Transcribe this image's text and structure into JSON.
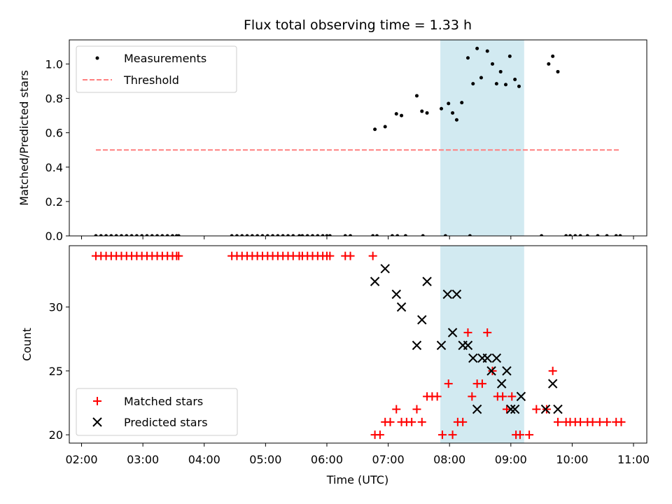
{
  "chart_data": [
    {
      "type": "scatter",
      "title": "Flux total observing time = 1.33 h",
      "ylabel": "Matched/Predicted stars",
      "xlabel": "",
      "ylim": [
        0,
        1.14
      ],
      "yticks": [
        0.0,
        0.2,
        0.4,
        0.6,
        0.8,
        1.0
      ],
      "ytick_labels": [
        "0.0",
        "0.2",
        "0.4",
        "0.6",
        "0.8",
        "1.0"
      ],
      "highlight_span": [
        "07:51",
        "09:13"
      ],
      "highlight_color": "#add8e6",
      "legend": {
        "position": "upper-left",
        "items": [
          "Measurements",
          "Threshold"
        ]
      },
      "series": [
        {
          "name": "Measurements",
          "marker": "dot",
          "color": "#000000",
          "points": [
            [
              "02:14",
              0
            ],
            [
              "02:19",
              0
            ],
            [
              "02:24",
              0
            ],
            [
              "02:29",
              0
            ],
            [
              "02:34",
              0
            ],
            [
              "02:39",
              0
            ],
            [
              "02:44",
              0
            ],
            [
              "02:49",
              0
            ],
            [
              "02:54",
              0
            ],
            [
              "02:59",
              0
            ],
            [
              "03:04",
              0
            ],
            [
              "03:09",
              0
            ],
            [
              "03:14",
              0
            ],
            [
              "03:19",
              0
            ],
            [
              "03:24",
              0
            ],
            [
              "03:29",
              0
            ],
            [
              "03:33",
              0
            ],
            [
              "03:35",
              0
            ],
            [
              "04:27",
              0
            ],
            [
              "04:32",
              0
            ],
            [
              "04:37",
              0
            ],
            [
              "04:42",
              0
            ],
            [
              "04:47",
              0
            ],
            [
              "04:52",
              0
            ],
            [
              "04:57",
              0
            ],
            [
              "05:02",
              0
            ],
            [
              "05:07",
              0
            ],
            [
              "05:12",
              0
            ],
            [
              "05:17",
              0
            ],
            [
              "05:22",
              0
            ],
            [
              "05:27",
              0
            ],
            [
              "05:33",
              0
            ],
            [
              "05:36",
              0
            ],
            [
              "05:41",
              0
            ],
            [
              "05:46",
              0
            ],
            [
              "05:51",
              0
            ],
            [
              "05:56",
              0
            ],
            [
              "06:00",
              0
            ],
            [
              "06:03",
              0
            ],
            [
              "06:18",
              0
            ],
            [
              "06:23",
              0
            ],
            [
              "06:45",
              0
            ],
            [
              "06:49",
              0
            ],
            [
              "07:04",
              0
            ],
            [
              "07:09",
              0
            ],
            [
              "07:17",
              0
            ],
            [
              "07:34",
              0
            ],
            [
              "07:56",
              0
            ],
            [
              "08:20",
              0
            ],
            [
              "09:30",
              0
            ],
            [
              "09:54",
              0
            ],
            [
              "09:58",
              0
            ],
            [
              "10:03",
              0
            ],
            [
              "10:08",
              0
            ],
            [
              "10:15",
              0
            ],
            [
              "10:25",
              0
            ],
            [
              "10:34",
              0
            ],
            [
              "10:43",
              0
            ],
            [
              "10:47",
              0
            ],
            [
              "06:47",
              0.62
            ],
            [
              "06:57",
              0.635
            ],
            [
              "07:08",
              0.71
            ],
            [
              "07:13",
              0.7
            ],
            [
              "07:28",
              0.815
            ],
            [
              "07:33",
              0.725
            ],
            [
              "07:38",
              0.715
            ],
            [
              "07:52",
              0.74
            ],
            [
              "07:59",
              0.77
            ],
            [
              "08:03",
              0.715
            ],
            [
              "08:07",
              0.675
            ],
            [
              "08:12",
              0.775
            ],
            [
              "08:18",
              1.035
            ],
            [
              "08:23",
              0.885
            ],
            [
              "08:27",
              1.09
            ],
            [
              "08:31",
              0.92
            ],
            [
              "08:37",
              1.075
            ],
            [
              "08:42",
              1.0
            ],
            [
              "08:46",
              0.885
            ],
            [
              "08:50",
              0.955
            ],
            [
              "08:55",
              0.88
            ],
            [
              "08:59",
              1.045
            ],
            [
              "09:04",
              0.91
            ],
            [
              "09:08",
              0.87
            ],
            [
              "09:37",
              1.0
            ],
            [
              "09:41",
              1.045
            ],
            [
              "09:46",
              0.955
            ]
          ]
        },
        {
          "name": "Threshold",
          "style": "dashed",
          "color": "#ff8080",
          "x": [
            "02:14",
            "10:47"
          ],
          "y": [
            0.5,
            0.5
          ]
        }
      ]
    },
    {
      "type": "scatter",
      "title": "",
      "xlabel": "Time (UTC)",
      "ylabel": "Count",
      "xlim": [
        "01:48",
        "11:13"
      ],
      "xticks": [
        "02:00",
        "03:00",
        "04:00",
        "05:00",
        "06:00",
        "07:00",
        "08:00",
        "09:00",
        "10:00",
        "11:00"
      ],
      "ylim": [
        19.35,
        34.8
      ],
      "yticks": [
        20,
        25,
        30
      ],
      "ytick_labels": [
        "20",
        "25",
        "30"
      ],
      "highlight_span": [
        "07:51",
        "09:13"
      ],
      "highlight_color": "#add8e6",
      "legend": {
        "position": "lower-left",
        "items": [
          "Matched stars",
          "Predicted stars"
        ]
      },
      "series": [
        {
          "name": "Matched stars",
          "marker": "plus",
          "color": "#ff0000",
          "points": [
            [
              "02:14",
              34
            ],
            [
              "02:19",
              34
            ],
            [
              "02:24",
              34
            ],
            [
              "02:29",
              34
            ],
            [
              "02:34",
              34
            ],
            [
              "02:39",
              34
            ],
            [
              "02:44",
              34
            ],
            [
              "02:49",
              34
            ],
            [
              "02:54",
              34
            ],
            [
              "02:59",
              34
            ],
            [
              "03:04",
              34
            ],
            [
              "03:09",
              34
            ],
            [
              "03:14",
              34
            ],
            [
              "03:19",
              34
            ],
            [
              "03:24",
              34
            ],
            [
              "03:29",
              34
            ],
            [
              "03:33",
              34
            ],
            [
              "03:35",
              34
            ],
            [
              "04:27",
              34
            ],
            [
              "04:32",
              34
            ],
            [
              "04:37",
              34
            ],
            [
              "04:42",
              34
            ],
            [
              "04:47",
              34
            ],
            [
              "04:52",
              34
            ],
            [
              "04:57",
              34
            ],
            [
              "05:02",
              34
            ],
            [
              "05:07",
              34
            ],
            [
              "05:12",
              34
            ],
            [
              "05:17",
              34
            ],
            [
              "05:22",
              34
            ],
            [
              "05:27",
              34
            ],
            [
              "05:33",
              34
            ],
            [
              "05:36",
              34
            ],
            [
              "05:41",
              34
            ],
            [
              "05:46",
              34
            ],
            [
              "05:51",
              34
            ],
            [
              "05:56",
              34
            ],
            [
              "06:00",
              34
            ],
            [
              "06:03",
              34
            ],
            [
              "06:18",
              34
            ],
            [
              "06:23",
              34
            ],
            [
              "06:45",
              34
            ],
            [
              "06:47",
              20
            ],
            [
              "06:52",
              20
            ],
            [
              "06:57",
              21
            ],
            [
              "07:02",
              21
            ],
            [
              "07:08",
              22
            ],
            [
              "07:13",
              21
            ],
            [
              "07:18",
              21
            ],
            [
              "07:23",
              21
            ],
            [
              "07:28",
              22
            ],
            [
              "07:33",
              21
            ],
            [
              "07:38",
              23
            ],
            [
              "07:43",
              23
            ],
            [
              "07:48",
              23
            ],
            [
              "07:53",
              20
            ],
            [
              "07:59",
              24
            ],
            [
              "08:03",
              20
            ],
            [
              "08:08",
              21
            ],
            [
              "08:13",
              21
            ],
            [
              "08:18",
              28
            ],
            [
              "08:22",
              23
            ],
            [
              "08:27",
              24
            ],
            [
              "08:32",
              24
            ],
            [
              "08:37",
              28
            ],
            [
              "08:42",
              25
            ],
            [
              "08:47",
              23
            ],
            [
              "08:52",
              23
            ],
            [
              "08:56",
              22
            ],
            [
              "09:01",
              23
            ],
            [
              "09:05",
              20
            ],
            [
              "09:09",
              20
            ],
            [
              "09:18",
              20
            ],
            [
              "09:25",
              22
            ],
            [
              "09:35",
              22
            ],
            [
              "09:41",
              25
            ],
            [
              "09:46",
              21
            ],
            [
              "09:54",
              21
            ],
            [
              "09:58",
              21
            ],
            [
              "10:03",
              21
            ],
            [
              "10:08",
              21
            ],
            [
              "10:15",
              21
            ],
            [
              "10:20",
              21
            ],
            [
              "10:27",
              21
            ],
            [
              "10:34",
              21
            ],
            [
              "10:43",
              21
            ],
            [
              "10:48",
              21
            ]
          ]
        },
        {
          "name": "Predicted stars",
          "marker": "x",
          "color": "#000000",
          "points": [
            [
              "06:47",
              32
            ],
            [
              "06:57",
              33
            ],
            [
              "07:08",
              31
            ],
            [
              "07:13",
              30
            ],
            [
              "07:28",
              27
            ],
            [
              "07:33",
              29
            ],
            [
              "07:38",
              32
            ],
            [
              "07:52",
              27
            ],
            [
              "07:58",
              31
            ],
            [
              "08:03",
              28
            ],
            [
              "08:07",
              31
            ],
            [
              "08:13",
              27
            ],
            [
              "08:18",
              27
            ],
            [
              "08:23",
              26
            ],
            [
              "08:27",
              22
            ],
            [
              "08:32",
              26
            ],
            [
              "08:37",
              26
            ],
            [
              "08:41",
              25
            ],
            [
              "08:46",
              26
            ],
            [
              "08:51",
              24
            ],
            [
              "08:56",
              25
            ],
            [
              "09:00",
              22
            ],
            [
              "09:04",
              22
            ],
            [
              "09:10",
              23
            ],
            [
              "09:34",
              22
            ],
            [
              "09:41",
              24
            ],
            [
              "09:46",
              22
            ]
          ]
        }
      ]
    }
  ]
}
